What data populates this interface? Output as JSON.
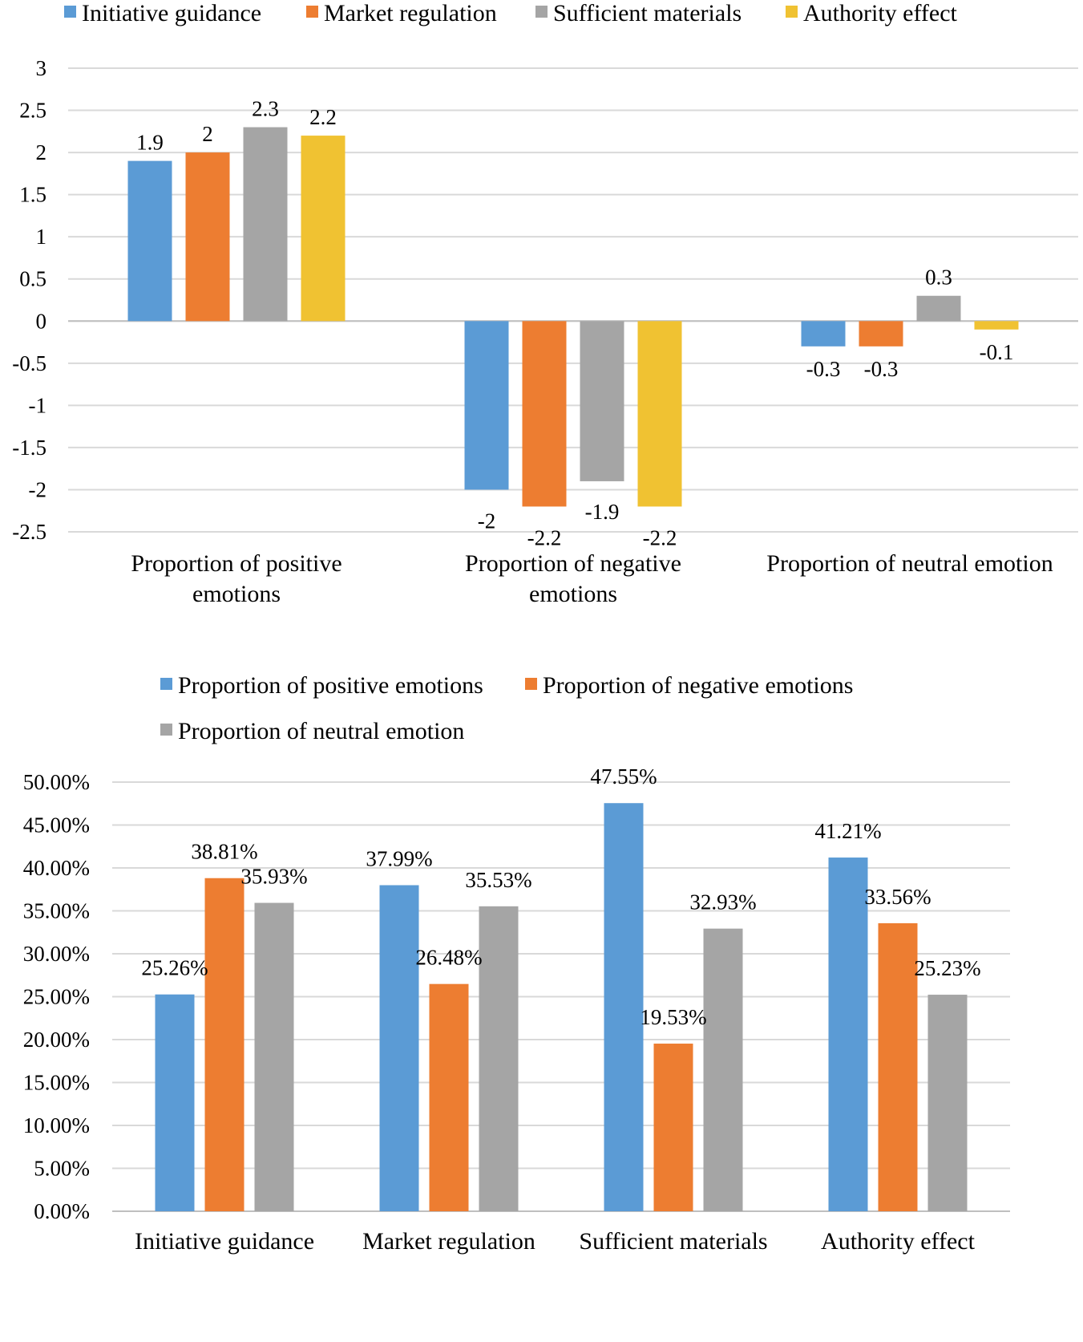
{
  "chart_data": [
    {
      "type": "bar",
      "title": "",
      "xlabel": "",
      "ylabel": "",
      "ylim": [
        -2.5,
        3
      ],
      "yticks": [
        "3",
        "2.5",
        "2",
        "1.5",
        "1",
        "0.5",
        "0",
        "-0.5",
        "-1",
        "-1.5",
        "-2",
        "-2.5"
      ],
      "legend_position": "top",
      "categories": [
        "Proportion of positive emotions",
        "Proportion of negative emotions",
        "Proportion of neutral emotion"
      ],
      "series": [
        {
          "name": "Initiative guidance",
          "color": "#5B9BD5",
          "values": [
            1.9,
            -2,
            -0.3
          ],
          "labels": [
            "1.9",
            "-2",
            "-0.3"
          ]
        },
        {
          "name": "Market regulation",
          "color": "#ED7D31",
          "values": [
            2,
            -2.2,
            -0.3
          ],
          "labels": [
            "2",
            "-2.2",
            "-0.3"
          ]
        },
        {
          "name": "Sufficient materials",
          "color": "#A5A5A5",
          "values": [
            2.3,
            -1.9,
            0.3
          ],
          "labels": [
            "2.3",
            "-1.9",
            "0.3"
          ]
        },
        {
          "name": "Authority effect",
          "color": "#F0C232",
          "values": [
            2.2,
            -2.2,
            -0.1
          ],
          "labels": [
            "2.2",
            "-2.2",
            "-0.1"
          ]
        }
      ]
    },
    {
      "type": "bar",
      "title": "",
      "xlabel": "",
      "ylabel": "",
      "ylim": [
        0,
        50
      ],
      "yticks": [
        "50.00%",
        "45.00%",
        "40.00%",
        "35.00%",
        "30.00%",
        "25.00%",
        "20.00%",
        "15.00%",
        "10.00%",
        "5.00%",
        "0.00%"
      ],
      "legend_position": "top",
      "categories": [
        "Initiative guidance",
        "Market regulation",
        "Sufficient materials",
        "Authority effect"
      ],
      "series": [
        {
          "name": "Proportion of positive emotions",
          "color": "#5B9BD5",
          "values": [
            25.26,
            37.99,
            47.55,
            41.21
          ],
          "labels": [
            "25.26%",
            "37.99%",
            "47.55%",
            "41.21%"
          ]
        },
        {
          "name": "Proportion of negative emotions",
          "color": "#ED7D31",
          "values": [
            38.81,
            26.48,
            19.53,
            33.56
          ],
          "labels": [
            "38.81%",
            "26.48%",
            "19.53%",
            "33.56%"
          ]
        },
        {
          "name": "Proportion of neutral emotion",
          "color": "#A5A5A5",
          "values": [
            35.93,
            35.53,
            32.93,
            25.23
          ],
          "labels": [
            "35.93%",
            "35.53%",
            "32.93%",
            "25.23%"
          ]
        }
      ]
    }
  ]
}
